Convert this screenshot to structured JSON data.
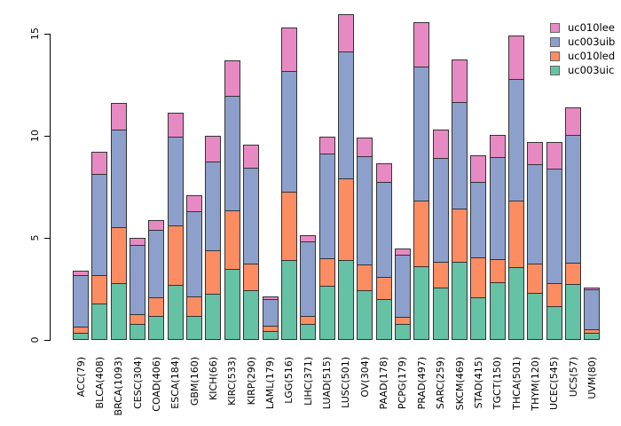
{
  "chart_data": {
    "type": "bar",
    "stacked": true,
    "title": "",
    "xlabel": "",
    "ylabel": "",
    "ylim": [
      0,
      16
    ],
    "yticks": [
      0,
      5,
      10,
      15
    ],
    "grid": false,
    "legend_position": "top-right",
    "background_color": "#FFFFFF",
    "axis_color": "#000000",
    "bar_border_color": "#333333",
    "categories": [
      "ACC(79)",
      "BLCA(408)",
      "BRCA(1093)",
      "CESC(304)",
      "COAD(406)",
      "ESCA(184)",
      "GBM(160)",
      "KICH(66)",
      "KIRC(533)",
      "KIRP(290)",
      "LAML(179)",
      "LGG(516)",
      "LIHC(371)",
      "LUAD(515)",
      "LUSC(501)",
      "OV(304)",
      "PAAD(178)",
      "PCPG(179)",
      "PRAD(497)",
      "SARC(259)",
      "SKCM(469)",
      "STAD(415)",
      "TGCT(150)",
      "THCA(501)",
      "THYM(120)",
      "UCEC(545)",
      "UCS(57)",
      "UVM(80)"
    ],
    "series": [
      {
        "name": "uc003uic",
        "color": "#66C2A5",
        "values": [
          0.3,
          1.75,
          2.75,
          0.75,
          1.15,
          2.65,
          1.15,
          2.2,
          3.45,
          2.4,
          0.4,
          3.85,
          0.75,
          2.6,
          3.85,
          2.4,
          1.95,
          0.75,
          3.55,
          2.5,
          3.8,
          2.05,
          2.8,
          3.5,
          2.25,
          1.6,
          2.7,
          0.3
        ]
      },
      {
        "name": "uc010led",
        "color": "#FC8D62",
        "values": [
          0.3,
          1.4,
          2.75,
          0.45,
          0.9,
          2.9,
          0.95,
          2.15,
          2.85,
          1.3,
          0.25,
          3.35,
          0.4,
          1.35,
          4.0,
          1.25,
          1.1,
          0.35,
          3.25,
          1.3,
          2.6,
          1.95,
          1.1,
          3.3,
          1.45,
          1.15,
          1.05,
          0.2
        ]
      },
      {
        "name": "uc003uib",
        "color": "#8DA0CB",
        "values": [
          2.55,
          4.95,
          4.75,
          3.4,
          3.3,
          4.35,
          4.15,
          4.35,
          5.6,
          4.7,
          1.3,
          5.95,
          3.65,
          5.15,
          6.25,
          5.3,
          4.65,
          3.05,
          6.55,
          5.05,
          5.2,
          3.7,
          5.0,
          5.95,
          4.85,
          5.6,
          6.25,
          1.95
        ]
      },
      {
        "name": "uc010lee",
        "color": "#E78AC3",
        "values": [
          0.25,
          1.1,
          1.35,
          0.4,
          0.5,
          1.25,
          0.85,
          1.3,
          1.8,
          1.15,
          0.2,
          2.15,
          0.35,
          0.85,
          1.85,
          0.95,
          0.95,
          0.35,
          2.2,
          1.45,
          2.15,
          1.35,
          1.15,
          2.15,
          1.15,
          1.35,
          1.4,
          0.1
        ]
      }
    ],
    "legend": [
      "uc010lee",
      "uc003uib",
      "uc010led",
      "uc003uic"
    ]
  }
}
